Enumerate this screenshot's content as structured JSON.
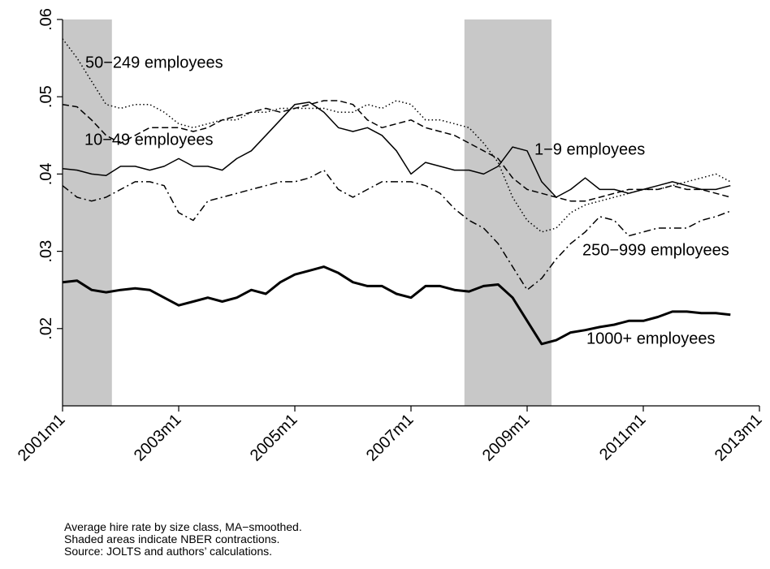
{
  "chart_data": {
    "type": "line",
    "xlim": [
      2001,
      2013
    ],
    "ylim": [
      0.01,
      0.06
    ],
    "xticks": [
      {
        "value": 2001,
        "label": "2001m1"
      },
      {
        "value": 2003,
        "label": "2003m1"
      },
      {
        "value": 2005,
        "label": "2005m1"
      },
      {
        "value": 2007,
        "label": "2007m1"
      },
      {
        "value": 2009,
        "label": "2009m1"
      },
      {
        "value": 2011,
        "label": "2011m1"
      },
      {
        "value": 2013,
        "label": "2013m1"
      }
    ],
    "yticks": [
      {
        "value": 0.02,
        "label": ".02"
      },
      {
        "value": 0.03,
        "label": ".03"
      },
      {
        "value": 0.04,
        "label": ".04"
      },
      {
        "value": 0.05,
        "label": ".05"
      },
      {
        "value": 0.06,
        "label": ".06"
      }
    ],
    "shaded": [
      [
        2001.0,
        2001.85
      ],
      [
        2007.92,
        2009.42
      ]
    ],
    "x": [
      2001,
      2001.25,
      2001.5,
      2001.75,
      2002,
      2002.25,
      2002.5,
      2002.75,
      2003,
      2003.25,
      2003.5,
      2003.75,
      2004,
      2004.25,
      2004.5,
      2004.75,
      2005,
      2005.25,
      2005.5,
      2005.75,
      2006,
      2006.25,
      2006.5,
      2006.75,
      2007,
      2007.25,
      2007.5,
      2007.75,
      2008,
      2008.25,
      2008.5,
      2008.75,
      2009,
      2009.25,
      2009.5,
      2009.75,
      2010,
      2010.25,
      2010.5,
      2010.75,
      2011,
      2011.25,
      2011.5,
      2011.75,
      2012,
      2012.25,
      2012.5
    ],
    "series": [
      {
        "name": "1000+ employees",
        "color": "#000000",
        "values": [
          0.026,
          0.0262,
          0.025,
          0.0247,
          0.025,
          0.0252,
          0.025,
          0.024,
          0.023,
          0.0235,
          0.024,
          0.0235,
          0.024,
          0.025,
          0.0245,
          0.026,
          0.027,
          0.0275,
          0.028,
          0.0272,
          0.026,
          0.0255,
          0.0255,
          0.0245,
          0.024,
          0.0255,
          0.0255,
          0.025,
          0.0248,
          0.0255,
          0.0257,
          0.024,
          0.021,
          0.018,
          0.0185,
          0.0195,
          0.0198,
          0.0202,
          0.0205,
          0.021,
          0.021,
          0.0215,
          0.0222,
          0.0222,
          0.022,
          0.022,
          0.0218
        ]
      },
      {
        "name": "1−9 employees",
        "color": "#000000",
        "values": [
          0.0407,
          0.0405,
          0.04,
          0.0398,
          0.041,
          0.041,
          0.0405,
          0.041,
          0.042,
          0.041,
          0.041,
          0.0405,
          0.042,
          0.043,
          0.045,
          0.047,
          0.049,
          0.0493,
          0.048,
          0.046,
          0.0455,
          0.046,
          0.045,
          0.043,
          0.04,
          0.0415,
          0.041,
          0.0405,
          0.0405,
          0.04,
          0.041,
          0.0435,
          0.043,
          0.039,
          0.037,
          0.038,
          0.0395,
          0.038,
          0.038,
          0.0375,
          0.038,
          0.0385,
          0.039,
          0.0385,
          0.038,
          0.038,
          0.0385
        ]
      },
      {
        "name": "10−49 employees",
        "color": "#000000",
        "values": [
          0.049,
          0.0487,
          0.047,
          0.045,
          0.044,
          0.045,
          0.046,
          0.046,
          0.046,
          0.0455,
          0.046,
          0.047,
          0.0475,
          0.048,
          0.0485,
          0.048,
          0.0485,
          0.049,
          0.0495,
          0.0495,
          0.049,
          0.047,
          0.046,
          0.0465,
          0.047,
          0.046,
          0.0455,
          0.045,
          0.044,
          0.043,
          0.042,
          0.0395,
          0.038,
          0.0375,
          0.037,
          0.0365,
          0.0365,
          0.037,
          0.0375,
          0.038,
          0.038,
          0.038,
          0.0385,
          0.038,
          0.038,
          0.0375,
          0.037
        ]
      },
      {
        "name": "50−249 employees",
        "color": "#000000",
        "values": [
          0.0575,
          0.055,
          0.052,
          0.049,
          0.0485,
          0.049,
          0.049,
          0.048,
          0.0465,
          0.046,
          0.0465,
          0.047,
          0.047,
          0.048,
          0.048,
          0.0485,
          0.0485,
          0.0485,
          0.0485,
          0.048,
          0.048,
          0.049,
          0.0485,
          0.0495,
          0.049,
          0.047,
          0.047,
          0.0465,
          0.046,
          0.044,
          0.0415,
          0.037,
          0.034,
          0.0325,
          0.033,
          0.035,
          0.036,
          0.0365,
          0.037,
          0.0375,
          0.038,
          0.038,
          0.0385,
          0.039,
          0.0395,
          0.04,
          0.039
        ]
      },
      {
        "name": "250−999 employees",
        "color": "#000000",
        "values": [
          0.0385,
          0.037,
          0.0365,
          0.037,
          0.038,
          0.039,
          0.039,
          0.0385,
          0.035,
          0.034,
          0.0365,
          0.037,
          0.0375,
          0.038,
          0.0385,
          0.039,
          0.039,
          0.0395,
          0.0405,
          0.038,
          0.037,
          0.038,
          0.039,
          0.039,
          0.039,
          0.0385,
          0.0375,
          0.0355,
          0.034,
          0.033,
          0.031,
          0.028,
          0.025,
          0.0265,
          0.029,
          0.031,
          0.0325,
          0.0345,
          0.034,
          0.032,
          0.0325,
          0.033,
          0.033,
          0.033,
          0.034,
          0.0345,
          0.0352
        ]
      }
    ],
    "notes": [
      "Average hire rate by size class, MA−smoothed.",
      "Shaded areas indicate NBER contractions.",
      "Source: JOLTS and authors’ calculations."
    ]
  }
}
